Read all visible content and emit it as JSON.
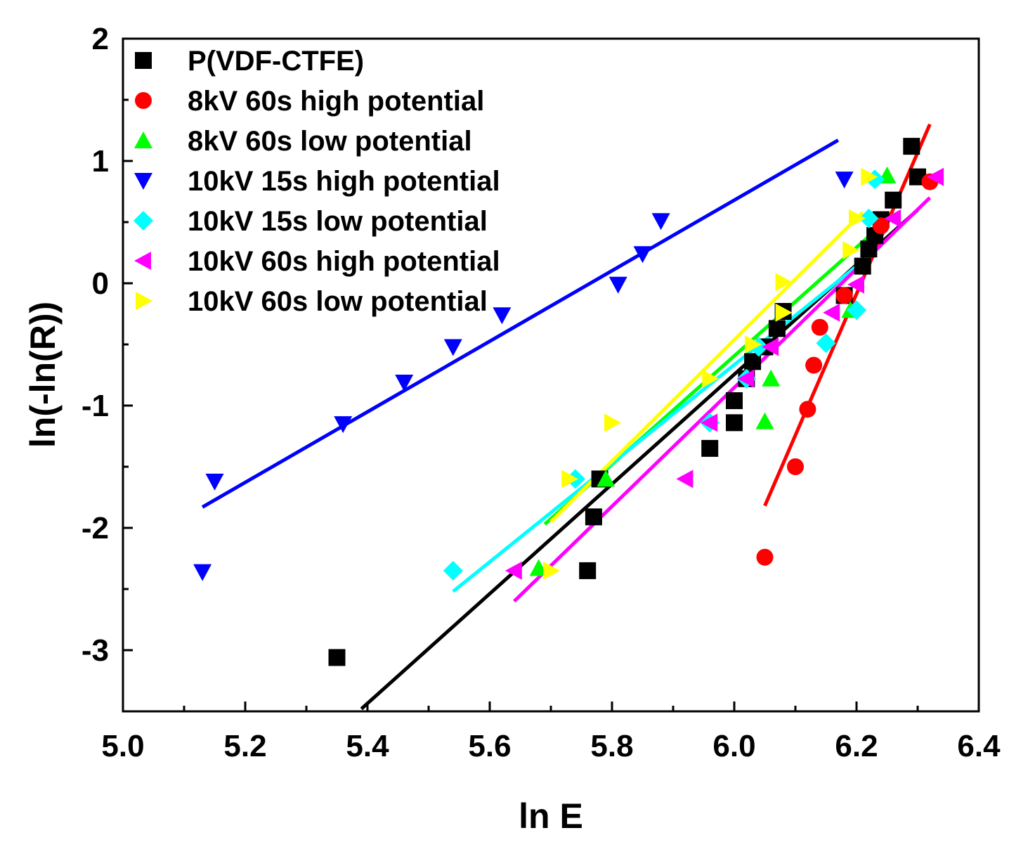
{
  "chart_data": {
    "type": "scatter",
    "title": "",
    "xlabel": "ln E",
    "ylabel": "ln(-ln(R))",
    "xlim": [
      5.0,
      6.4
    ],
    "ylim": [
      -3.5,
      2.0
    ],
    "xticks": [
      "5.0",
      "5.2",
      "5.4",
      "5.6",
      "5.8",
      "6.0",
      "6.2",
      "6.4"
    ],
    "yticks": [
      "2",
      "1",
      "0",
      "-1",
      "-2",
      "-3"
    ],
    "legend_position": "top-left",
    "series": [
      {
        "name": "P(VDF-CTFE)",
        "color": "#000000",
        "marker": "square",
        "points": [
          [
            5.35,
            -3.06
          ],
          [
            5.76,
            -2.35
          ],
          [
            5.77,
            -1.91
          ],
          [
            5.78,
            -1.6
          ],
          [
            5.96,
            -1.35
          ],
          [
            6.0,
            -1.14
          ],
          [
            6.0,
            -0.96
          ],
          [
            6.02,
            -0.78
          ],
          [
            6.03,
            -0.64
          ],
          [
            6.05,
            -0.52
          ],
          [
            6.07,
            -0.37
          ],
          [
            6.08,
            -0.23
          ],
          [
            6.18,
            -0.1
          ],
          [
            6.21,
            0.14
          ],
          [
            6.22,
            0.28
          ],
          [
            6.23,
            0.39
          ],
          [
            6.24,
            0.52
          ],
          [
            6.26,
            0.68
          ],
          [
            6.29,
            1.12
          ],
          [
            6.3,
            0.87
          ]
        ],
        "fit": [
          [
            5.39,
            -3.48
          ],
          [
            6.3,
            0.6
          ]
        ]
      },
      {
        "name": "8kV 60s high potential",
        "color": "#ff0000",
        "marker": "circle",
        "points": [
          [
            6.05,
            -2.24
          ],
          [
            6.1,
            -1.5
          ],
          [
            6.12,
            -1.03
          ],
          [
            6.13,
            -0.67
          ],
          [
            6.14,
            -0.36
          ],
          [
            6.18,
            -0.1
          ],
          [
            6.24,
            0.47
          ],
          [
            6.32,
            0.83
          ]
        ],
        "fit": [
          [
            6.05,
            -1.82
          ],
          [
            6.32,
            1.3
          ]
        ]
      },
      {
        "name": "8kV 60s low potential",
        "color": "#00ff00",
        "marker": "triangle-up",
        "points": [
          [
            5.68,
            -2.33
          ],
          [
            5.79,
            -1.6
          ],
          [
            6.05,
            -1.13
          ],
          [
            6.06,
            -0.78
          ],
          [
            6.19,
            -0.22
          ],
          [
            6.25,
            0.88
          ]
        ],
        "fit": [
          [
            5.69,
            -1.97
          ],
          [
            6.26,
            0.56
          ]
        ]
      },
      {
        "name": "10kV 15s high potential",
        "color": "#0000ff",
        "marker": "triangle-down",
        "points": [
          [
            5.13,
            -2.36
          ],
          [
            5.15,
            -1.62
          ],
          [
            5.36,
            -1.15
          ],
          [
            5.46,
            -0.81
          ],
          [
            5.54,
            -0.52
          ],
          [
            5.62,
            -0.26
          ],
          [
            5.81,
            -0.01
          ],
          [
            5.85,
            0.24
          ],
          [
            5.88,
            0.51
          ],
          [
            6.18,
            0.85
          ]
        ],
        "fit": [
          [
            5.13,
            -1.83
          ],
          [
            6.17,
            1.17
          ]
        ]
      },
      {
        "name": "10kV 15s low potential",
        "color": "#00ffff",
        "marker": "diamond",
        "points": [
          [
            5.54,
            -2.35
          ],
          [
            5.74,
            -1.6
          ],
          [
            5.96,
            -1.14
          ],
          [
            6.02,
            -0.78
          ],
          [
            6.04,
            -0.52
          ],
          [
            6.15,
            -0.49
          ],
          [
            6.2,
            -0.22
          ],
          [
            6.22,
            0.53
          ],
          [
            6.23,
            0.85
          ]
        ],
        "fit": [
          [
            5.54,
            -2.52
          ],
          [
            6.22,
            0.22
          ]
        ]
      },
      {
        "name": "10kV 60s high potential",
        "color": "#ff00ff",
        "marker": "triangle-left",
        "points": [
          [
            5.64,
            -2.35
          ],
          [
            5.92,
            -1.6
          ],
          [
            5.96,
            -1.14
          ],
          [
            6.02,
            -0.78
          ],
          [
            6.06,
            -0.52
          ],
          [
            6.16,
            -0.24
          ],
          [
            6.2,
            -0.01
          ],
          [
            6.26,
            0.53
          ],
          [
            6.33,
            0.87
          ]
        ],
        "fit": [
          [
            5.64,
            -2.6
          ],
          [
            6.32,
            0.7
          ]
        ]
      },
      {
        "name": "10kV 60s low potential",
        "color": "#ffff00",
        "marker": "triangle-right",
        "points": [
          [
            5.7,
            -2.35
          ],
          [
            5.73,
            -1.6
          ],
          [
            5.8,
            -1.14
          ],
          [
            5.96,
            -0.78
          ],
          [
            6.03,
            -0.5
          ],
          [
            6.08,
            -0.24
          ],
          [
            6.08,
            0.01
          ],
          [
            6.19,
            0.27
          ],
          [
            6.2,
            0.53
          ],
          [
            6.22,
            0.87
          ]
        ],
        "fit": [
          [
            5.7,
            -1.95
          ],
          [
            6.21,
            0.58
          ]
        ]
      }
    ]
  }
}
